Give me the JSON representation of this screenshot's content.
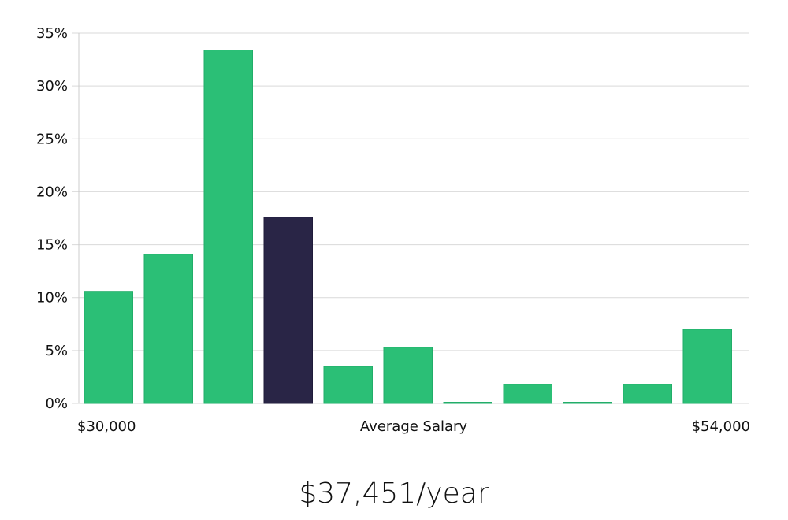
{
  "chart_data": {
    "type": "bar",
    "title": "",
    "xlabel": "Average Salary",
    "ylabel": "",
    "x_range_labels": {
      "min": "$30,000",
      "max": "$54,000"
    },
    "categories": [
      "bin-1",
      "bin-2",
      "bin-3",
      "bin-4",
      "bin-5",
      "bin-6",
      "bin-7",
      "bin-8",
      "bin-9",
      "bin-10",
      "bin-11"
    ],
    "values": [
      10.6,
      14.1,
      33.4,
      17.6,
      3.5,
      5.3,
      0.1,
      1.8,
      0.1,
      1.8,
      7.0
    ],
    "highlight_index": 3,
    "ylim": [
      0,
      35
    ],
    "yticks": [
      0,
      5,
      10,
      15,
      20,
      25,
      30,
      35
    ],
    "ytick_labels": [
      "0%",
      "5%",
      "10%",
      "15%",
      "20%",
      "25%",
      "30%",
      "35%"
    ],
    "grid": true,
    "legend": "none"
  },
  "colors": {
    "bar": "#2bbf76",
    "bar_highlight": "#292546",
    "grid": "#d9d9d9",
    "axis": "#cccccc"
  },
  "summary": {
    "average_salary": "$37,451/year"
  }
}
